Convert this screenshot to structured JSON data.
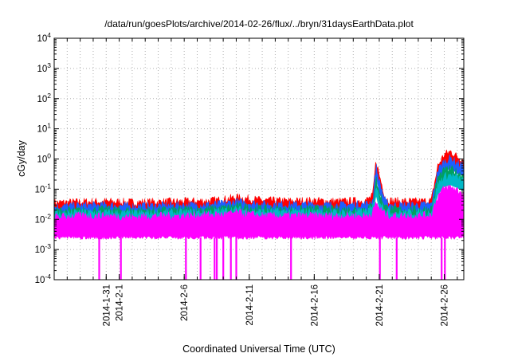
{
  "chart_data": {
    "type": "line",
    "title": "/data/run/goesPlots/archive/2014-02-26/flux/../bryn/31daysEarthData.plot",
    "xlabel": "Coordinated Universal Time (UTC)",
    "ylabel": "cGy/day",
    "yscale": "log",
    "ylim": [
      0.0001,
      10000
    ],
    "xlim": [
      "2014-01-27",
      "2014-02-27T12:00"
    ],
    "grid": true,
    "legend": "none",
    "y_ticks": [
      {
        "value": 0.0001,
        "base": "10",
        "exp": "-4"
      },
      {
        "value": 0.001,
        "base": "10",
        "exp": "-3"
      },
      {
        "value": 0.01,
        "base": "10",
        "exp": "-2"
      },
      {
        "value": 0.1,
        "base": "10",
        "exp": "-1"
      },
      {
        "value": 1,
        "base": "10",
        "exp": "0"
      },
      {
        "value": 10,
        "base": "10",
        "exp": "1"
      },
      {
        "value": 100,
        "base": "10",
        "exp": "2"
      },
      {
        "value": 1000,
        "base": "10",
        "exp": "3"
      },
      {
        "value": 10000,
        "base": "10",
        "exp": "4"
      }
    ],
    "x_ticks": [
      {
        "date": "2014-01-31",
        "label": "2014-1-31"
      },
      {
        "date": "2014-02-01",
        "label": "2014-2-1"
      },
      {
        "date": "2014-02-06",
        "label": "2014-2-6"
      },
      {
        "date": "2014-02-11",
        "label": "2014-2-11"
      },
      {
        "date": "2014-02-16",
        "label": "2014-2-16"
      },
      {
        "date": "2014-02-21",
        "label": "2014-2-21"
      },
      {
        "date": "2014-02-26",
        "label": "2014-2-26"
      }
    ],
    "series": [
      {
        "color": "#ff0000",
        "x": [
          "2014-01-27",
          "2014-01-29",
          "2014-01-31",
          "2014-02-02",
          "2014-02-04",
          "2014-02-06",
          "2014-02-08",
          "2014-02-09",
          "2014-02-10",
          "2014-02-12",
          "2014-02-14",
          "2014-02-16",
          "2014-02-18",
          "2014-02-20",
          "2014-02-20T12:00",
          "2014-02-20T18:00",
          "2014-02-21",
          "2014-02-21T12:00",
          "2014-02-22",
          "2014-02-24",
          "2014-02-25",
          "2014-02-25T12:00",
          "2014-02-26",
          "2014-02-26T12:00",
          "2014-02-27",
          "2014-02-27T12:00"
        ],
        "y": [
          0.03,
          0.032,
          0.033,
          0.031,
          0.032,
          0.033,
          0.035,
          0.038,
          0.045,
          0.036,
          0.034,
          0.035,
          0.033,
          0.036,
          0.05,
          0.8,
          0.25,
          0.04,
          0.034,
          0.033,
          0.035,
          0.5,
          1.2,
          1.5,
          1.0,
          0.8
        ]
      },
      {
        "color": "#1e5fff",
        "x": [
          "2014-01-27",
          "2014-01-29",
          "2014-01-31",
          "2014-02-02",
          "2014-02-04",
          "2014-02-06",
          "2014-02-08",
          "2014-02-09",
          "2014-02-10",
          "2014-02-12",
          "2014-02-14",
          "2014-02-16",
          "2014-02-18",
          "2014-02-20",
          "2014-02-20T12:00",
          "2014-02-20T18:00",
          "2014-02-21",
          "2014-02-21T12:00",
          "2014-02-22",
          "2014-02-24",
          "2014-02-25",
          "2014-02-25T12:00",
          "2014-02-26",
          "2014-02-26T12:00",
          "2014-02-27",
          "2014-02-27T12:00"
        ],
        "y": [
          0.022,
          0.024,
          0.025,
          0.023,
          0.024,
          0.025,
          0.026,
          0.028,
          0.032,
          0.027,
          0.026,
          0.026,
          0.025,
          0.027,
          0.035,
          0.5,
          0.15,
          0.03,
          0.025,
          0.025,
          0.026,
          0.35,
          0.7,
          0.9,
          0.6,
          0.5
        ]
      },
      {
        "color": "#00a060",
        "x": [
          "2014-01-27",
          "2014-01-29",
          "2014-01-31",
          "2014-02-02",
          "2014-02-04",
          "2014-02-06",
          "2014-02-08",
          "2014-02-09",
          "2014-02-10",
          "2014-02-12",
          "2014-02-14",
          "2014-02-16",
          "2014-02-18",
          "2014-02-20",
          "2014-02-20T12:00",
          "2014-02-20T18:00",
          "2014-02-21",
          "2014-02-21T12:00",
          "2014-02-22",
          "2014-02-24",
          "2014-02-25",
          "2014-02-25T12:00",
          "2014-02-26",
          "2014-02-26T12:00",
          "2014-02-27",
          "2014-02-27T12:00"
        ],
        "y": [
          0.016,
          0.017,
          0.018,
          0.017,
          0.017,
          0.018,
          0.019,
          0.02,
          0.023,
          0.019,
          0.018,
          0.019,
          0.018,
          0.019,
          0.025,
          0.2,
          0.06,
          0.022,
          0.018,
          0.018,
          0.019,
          0.2,
          0.35,
          0.4,
          0.3,
          0.25
        ]
      },
      {
        "color": "#00b8c8",
        "x": [
          "2014-01-27",
          "2014-01-29",
          "2014-01-31",
          "2014-02-02",
          "2014-02-04",
          "2014-02-06",
          "2014-02-08",
          "2014-02-09",
          "2014-02-10",
          "2014-02-12",
          "2014-02-14",
          "2014-02-16",
          "2014-02-18",
          "2014-02-20",
          "2014-02-20T12:00",
          "2014-02-20T18:00",
          "2014-02-21",
          "2014-02-21T12:00",
          "2014-02-22",
          "2014-02-24",
          "2014-02-25",
          "2014-02-25T12:00",
          "2014-02-26",
          "2014-02-26T12:00",
          "2014-02-27",
          "2014-02-27T12:00"
        ],
        "y": [
          0.013,
          0.014,
          0.014,
          0.013,
          0.014,
          0.014,
          0.015,
          0.016,
          0.018,
          0.015,
          0.015,
          0.015,
          0.014,
          0.015,
          0.02,
          0.12,
          0.04,
          0.017,
          0.014,
          0.014,
          0.015,
          0.12,
          0.22,
          0.25,
          0.2,
          0.16
        ]
      },
      {
        "color": "#ff00ff",
        "x": [
          "2014-01-27",
          "2014-01-29",
          "2014-01-31",
          "2014-02-02",
          "2014-02-04",
          "2014-02-06",
          "2014-02-08",
          "2014-02-09",
          "2014-02-10",
          "2014-02-12",
          "2014-02-14",
          "2014-02-16",
          "2014-02-18",
          "2014-02-20",
          "2014-02-20T12:00",
          "2014-02-20T18:00",
          "2014-02-21",
          "2014-02-21T12:00",
          "2014-02-22",
          "2014-02-24",
          "2014-02-25",
          "2014-02-25T12:00",
          "2014-02-26",
          "2014-02-26T12:00",
          "2014-02-27",
          "2014-02-27T12:00"
        ],
        "y": [
          0.01,
          0.011,
          0.011,
          0.01,
          0.011,
          0.011,
          0.012,
          0.012,
          0.014,
          0.011,
          0.011,
          0.011,
          0.011,
          0.011,
          0.014,
          0.03,
          0.02,
          0.012,
          0.011,
          0.011,
          0.012,
          0.05,
          0.09,
          0.1,
          0.08,
          0.06
        ],
        "floor": 0.0025,
        "dropouts": [
          "2014-01-30T11:00",
          "2014-02-01T03:00",
          "2014-02-06T03:00",
          "2014-02-07T06:00",
          "2014-02-08T08:00",
          "2014-02-08T12:00",
          "2014-02-09T00:00",
          "2014-02-09T14:00",
          "2014-02-10T00:00",
          "2014-02-14T05:00",
          "2014-02-21T01:00",
          "2014-02-22T08:00",
          "2014-02-25T19:00",
          "2014-02-26T01:00"
        ]
      }
    ]
  }
}
